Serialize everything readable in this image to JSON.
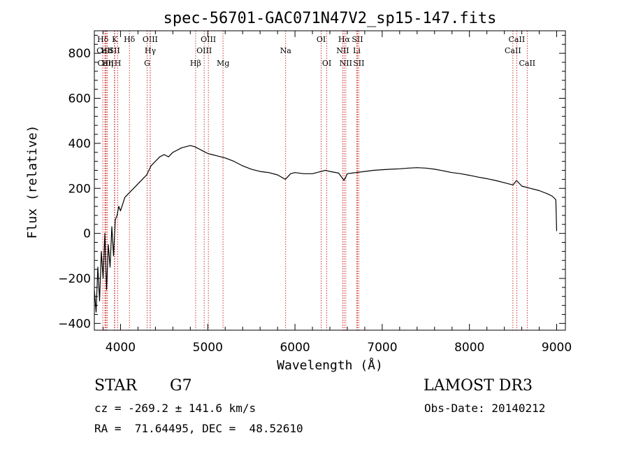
{
  "chart_data": {
    "type": "line",
    "title": "spec-56701-GAC071N47V2_sp15-147.fits",
    "xlabel": "Wavelength (Å)",
    "ylabel": "Flux (relative)",
    "xlim": [
      3700,
      9100
    ],
    "ylim": [
      -430,
      900
    ],
    "x_ticks": [
      4000,
      5000,
      6000,
      7000,
      8000,
      9000
    ],
    "y_ticks": [
      -400,
      -200,
      0,
      200,
      400,
      600,
      800
    ],
    "x_minor_step": 200,
    "y_minor_step": 40,
    "grid": false,
    "series": [
      {
        "x": [
          3700,
          3720,
          3740,
          3760,
          3780,
          3800,
          3820,
          3840,
          3860,
          3880,
          3900,
          3920,
          3940,
          3960,
          3980,
          4000,
          4050,
          4100,
          4150,
          4200,
          4250,
          4300,
          4350,
          4400,
          4450,
          4500,
          4550,
          4600,
          4650,
          4700,
          4750,
          4800,
          4850,
          4900,
          4950,
          5000,
          5050,
          5100,
          5150,
          5200,
          5300,
          5400,
          5500,
          5600,
          5700,
          5800,
          5890,
          5950,
          6000,
          6100,
          6200,
          6300,
          6350,
          6400,
          6500,
          6563,
          6600,
          6700,
          6800,
          6900,
          7000,
          7100,
          7200,
          7300,
          7400,
          7500,
          7600,
          7700,
          7800,
          7900,
          8000,
          8100,
          8200,
          8300,
          8400,
          8500,
          8540,
          8600,
          8700,
          8800,
          8900,
          8950,
          8990,
          9000
        ],
        "y": [
          -250,
          -350,
          -150,
          -300,
          -80,
          -200,
          0,
          -250,
          -50,
          -150,
          30,
          -100,
          60,
          80,
          120,
          100,
          160,
          180,
          200,
          220,
          240,
          260,
          300,
          320,
          340,
          350,
          340,
          360,
          370,
          380,
          385,
          390,
          385,
          375,
          365,
          355,
          350,
          345,
          340,
          335,
          320,
          300,
          285,
          275,
          270,
          260,
          240,
          265,
          270,
          265,
          265,
          275,
          280,
          275,
          268,
          235,
          265,
          270,
          275,
          280,
          283,
          285,
          287,
          290,
          292,
          290,
          285,
          278,
          270,
          265,
          258,
          250,
          243,
          235,
          225,
          215,
          235,
          210,
          200,
          190,
          175,
          165,
          150,
          10
        ]
      }
    ],
    "lines": [
      {
        "label": "Hδ",
        "x": 3797,
        "row": 1
      },
      {
        "label": "CaII",
        "x": 3820,
        "row": 2
      },
      {
        "label": "CaII",
        "x": 3830,
        "row": 3
      },
      {
        "label": "Hε",
        "x": 3835,
        "row": 2
      },
      {
        "label": "Hη",
        "x": 3850,
        "row": 3
      },
      {
        "label": "K",
        "x": 3934,
        "row": 1
      },
      {
        "label": "SII",
        "x": 3930,
        "row": 2
      },
      {
        "label": "H",
        "x": 3969,
        "row": 3
      },
      {
        "label": "Hδ",
        "x": 4102,
        "row": 1
      },
      {
        "label": "OIII",
        "x": 4340,
        "row": 1
      },
      {
        "label": "Hγ",
        "x": 4341,
        "row": 2
      },
      {
        "label": "G",
        "x": 4305,
        "row": 3
      },
      {
        "label": "OIII",
        "x": 5007,
        "row": 1
      },
      {
        "label": "OIII",
        "x": 4959,
        "row": 2
      },
      {
        "label": "Hβ",
        "x": 4861,
        "row": 3
      },
      {
        "label": "Mg",
        "x": 5175,
        "row": 3
      },
      {
        "label": "Na",
        "x": 5893,
        "row": 2
      },
      {
        "label": "OI",
        "x": 6300,
        "row": 1
      },
      {
        "label": "OI",
        "x": 6364,
        "row": 3
      },
      {
        "label": "Hα",
        "x": 6563,
        "row": 1
      },
      {
        "label": "NII",
        "x": 6548,
        "row": 2
      },
      {
        "label": "NII",
        "x": 6583,
        "row": 3
      },
      {
        "label": "SII",
        "x": 6716,
        "row": 1
      },
      {
        "label": "Li",
        "x": 6708,
        "row": 2
      },
      {
        "label": "SII",
        "x": 6731,
        "row": 3
      },
      {
        "label": "CaII",
        "x": 8542,
        "row": 1
      },
      {
        "label": "CaII",
        "x": 8498,
        "row": 2
      },
      {
        "label": "CaII",
        "x": 8662,
        "row": 3
      }
    ]
  },
  "info": {
    "object_class": "STAR",
    "subclass": "G7",
    "survey": "LAMOST DR3",
    "redshift": "cz = -269.2 ± 141.6 km/s",
    "obs_date": "Obs-Date: 20140212",
    "coords": "RA =  71.64495, DEC =  48.52610"
  }
}
